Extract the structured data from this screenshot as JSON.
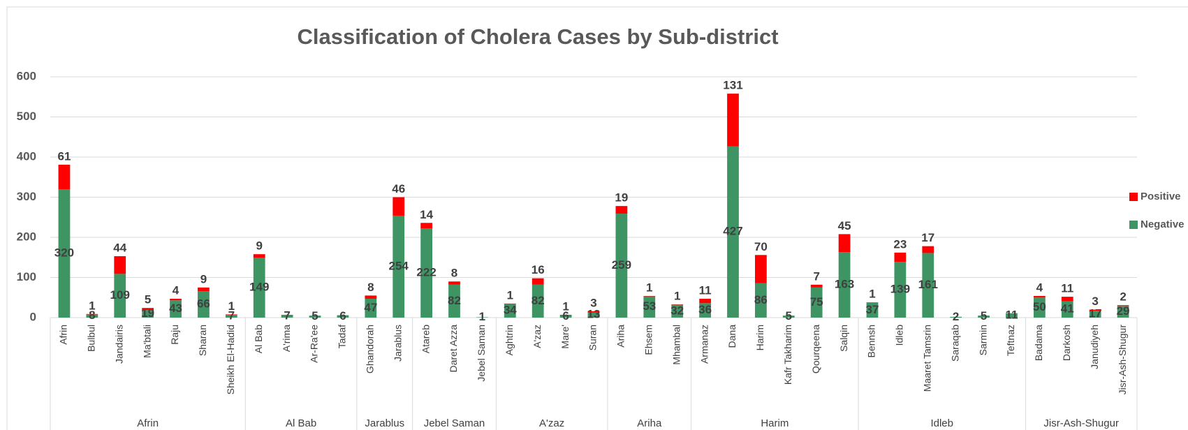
{
  "chart_data": {
    "type": "stacked_bar",
    "title": "Classification of Cholera Cases by Sub-district",
    "groups": [
      {
        "name": "Afrin",
        "categories": [
          "Afrin",
          "Bulbul",
          "Jandairis",
          "Ma'btali",
          "Raju",
          "Sharan",
          "Sheikh El-Hadid"
        ]
      },
      {
        "name": "Al Bab",
        "categories": [
          "Al Bab",
          "A'rima",
          "Ar-Ra'ee",
          "Tadaf"
        ]
      },
      {
        "name": "Jarablus",
        "categories": [
          "Ghandorah",
          "Jarablus"
        ]
      },
      {
        "name": "Jebel Saman",
        "categories": [
          "Atareb",
          "Daret Azza",
          "Jebel Saman"
        ]
      },
      {
        "name": "A'zaz",
        "categories": [
          "Aghtrin",
          "A'zaz",
          "Mare'",
          "Suran"
        ]
      },
      {
        "name": "Ariha",
        "categories": [
          "Ariha",
          "Ehsem",
          "Mhambal"
        ]
      },
      {
        "name": "Harim",
        "categories": [
          "Armanaz",
          "Dana",
          "Harim",
          "Kafr Takharim",
          "Qourqeena",
          "Salqin"
        ]
      },
      {
        "name": "Idleb",
        "categories": [
          "Bennsh",
          "Idleb",
          "Maaret Tamsrin",
          "Saraqab",
          "Sarmin",
          "Teftnaz"
        ]
      },
      {
        "name": "Jisr-Ash-Shugur",
        "categories": [
          "Badama",
          "Darkosh",
          "Janudiyeh",
          "Jisr-Ash-Shugur"
        ]
      }
    ],
    "series": [
      {
        "name": "Negative",
        "color": "#3e9463",
        "values": [
          320,
          8,
          109,
          19,
          43,
          66,
          7,
          149,
          7,
          5,
          6,
          47,
          254,
          222,
          82,
          1,
          34,
          82,
          6,
          13,
          259,
          53,
          32,
          36,
          427,
          86,
          5,
          75,
          163,
          37,
          139,
          161,
          2,
          5,
          11,
          50,
          41,
          17,
          29
        ]
      },
      {
        "name": "Positive",
        "color": "#ff0000",
        "values": [
          61,
          1,
          44,
          5,
          4,
          9,
          1,
          9,
          null,
          null,
          null,
          8,
          46,
          14,
          8,
          null,
          1,
          16,
          1,
          3,
          19,
          1,
          1,
          11,
          131,
          70,
          null,
          7,
          45,
          1,
          23,
          17,
          null,
          null,
          null,
          4,
          11,
          3,
          2
        ]
      }
    ],
    "ylim": [
      0,
      600
    ],
    "yticks": [
      0,
      100,
      200,
      300,
      400,
      500,
      600
    ],
    "grid": true,
    "legend": "right"
  }
}
